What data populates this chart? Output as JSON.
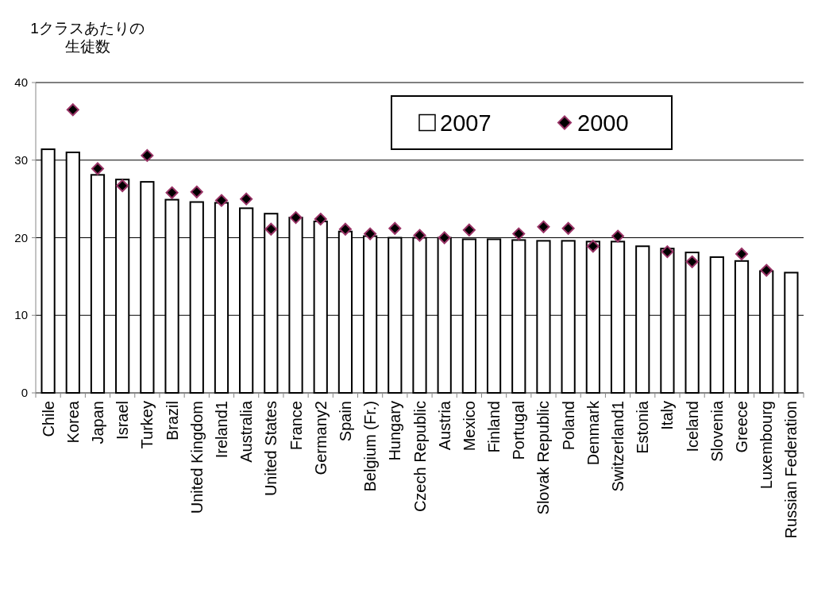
{
  "chart_data": {
    "type": "bar",
    "ylabel": "1クラスあたりの生徒数",
    "categories": [
      "Chile",
      "Korea",
      "Japan",
      "Israel",
      "Turkey",
      "Brazil",
      "United Kingdom",
      "Ireland1",
      "Australia",
      "United States",
      "France",
      "Germany2",
      "Spain",
      "Belgium (Fr.)",
      "Hungary",
      "Czech Republic",
      "Austria",
      "Mexico",
      "Finland",
      "Portugal",
      "Slovak Republic",
      "Poland",
      "Denmark",
      "Switzerland1",
      "Estonia",
      "Italy",
      "Iceland",
      "Slovenia",
      "Greece",
      "Luxembourg",
      "Russian Federation"
    ],
    "series": [
      {
        "name": "2007",
        "color": "#ffffff",
        "values": [
          31.4,
          31.0,
          28.1,
          27.5,
          27.2,
          24.9,
          24.6,
          24.5,
          23.8,
          23.1,
          22.6,
          22.1,
          20.8,
          20.2,
          20.0,
          20.0,
          20.0,
          19.8,
          19.8,
          19.7,
          19.6,
          19.6,
          19.5,
          19.5,
          18.9,
          18.6,
          18.1,
          17.5,
          17.0,
          15.7,
          15.5
        ]
      },
      {
        "name": "2000",
        "type": "scatter",
        "color": "#000000",
        "marker": "diamond",
        "values": [
          null,
          36.5,
          28.9,
          26.7,
          30.6,
          25.8,
          25.9,
          24.8,
          25.0,
          21.1,
          22.6,
          22.4,
          21.1,
          20.5,
          21.2,
          20.3,
          20.0,
          21.0,
          null,
          20.5,
          21.4,
          21.2,
          18.9,
          20.2,
          null,
          18.2,
          16.9,
          null,
          17.9,
          15.8,
          null
        ]
      }
    ],
    "ylim": [
      0,
      40
    ],
    "yticks": [
      0,
      10,
      20,
      30,
      40
    ],
    "grid": "y",
    "legend": "top"
  }
}
